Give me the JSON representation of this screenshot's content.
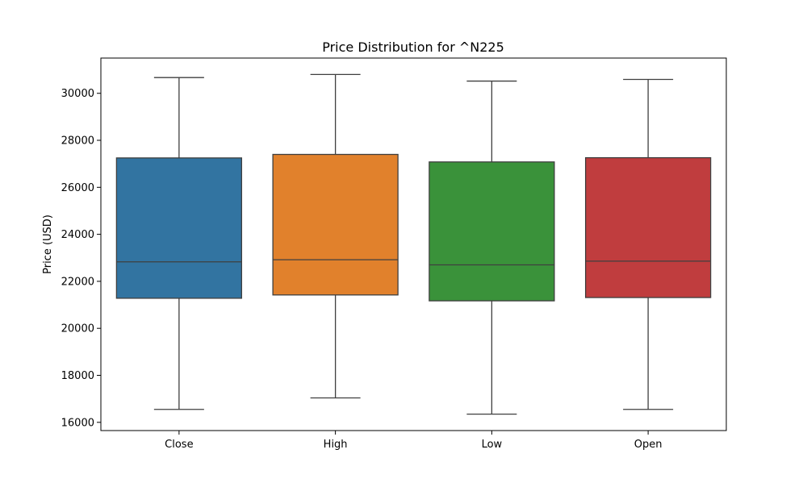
{
  "chart_data": {
    "type": "box",
    "title": "Price Distribution for ^N225",
    "xlabel": "",
    "ylabel": "Price (USD)",
    "categories": [
      "Close",
      "High",
      "Low",
      "Open"
    ],
    "series": [
      {
        "category": "Close",
        "color": "#3274a1",
        "whisker_low": 16550,
        "q1": 21280,
        "median": 22830,
        "q3": 27250,
        "whisker_high": 30670
      },
      {
        "category": "High",
        "color": "#e1812c",
        "whisker_low": 17040,
        "q1": 21420,
        "median": 22920,
        "q3": 27400,
        "whisker_high": 30800
      },
      {
        "category": "Low",
        "color": "#3a923a",
        "whisker_low": 16350,
        "q1": 21170,
        "median": 22700,
        "q3": 27080,
        "whisker_high": 30520
      },
      {
        "category": "Open",
        "color": "#c03d3e",
        "whisker_low": 16550,
        "q1": 21310,
        "median": 22860,
        "q3": 27260,
        "whisker_high": 30590
      }
    ],
    "yticks": [
      16000,
      18000,
      20000,
      22000,
      24000,
      26000,
      28000,
      30000
    ],
    "ylim": [
      15650,
      31500
    ],
    "grid": false,
    "legend": "none"
  }
}
